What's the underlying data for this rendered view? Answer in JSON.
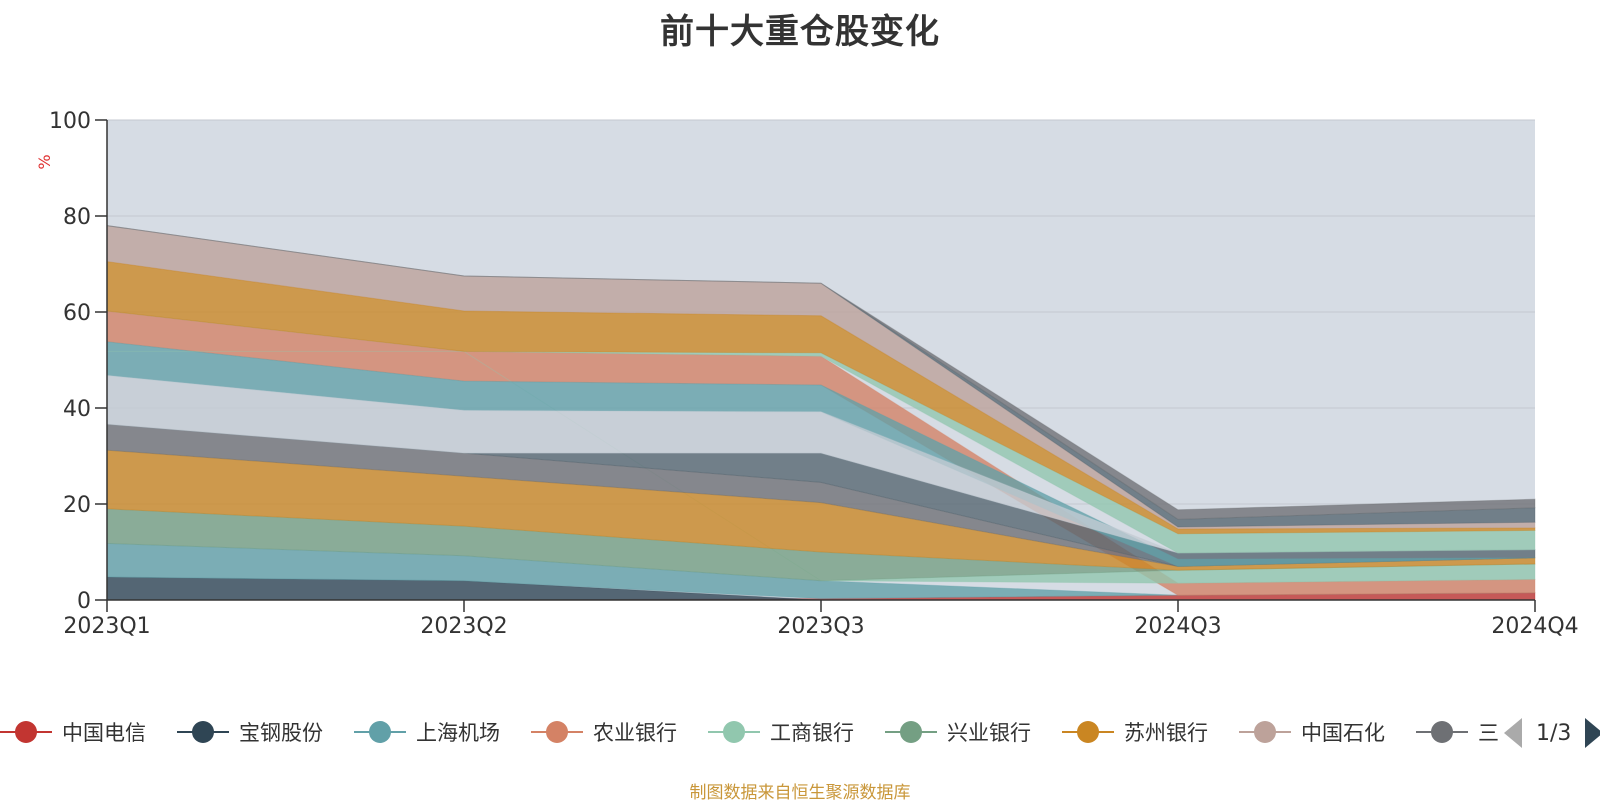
{
  "chart_data": {
    "type": "area",
    "title": "前十大重仓股变化",
    "ylabel": "%",
    "ylim": [
      0,
      100
    ],
    "yticks": [
      0,
      20,
      40,
      60,
      80,
      100
    ],
    "categories": [
      "2023Q1",
      "2023Q2",
      "2023Q3",
      "2024Q3",
      "2024Q4"
    ],
    "layers": [
      {
        "name": "中国电信",
        "color": "#c23531",
        "lower": [
          0,
          0,
          0,
          0,
          0
        ],
        "upper": [
          0,
          0,
          0.3,
          1.0,
          1.5
        ]
      },
      {
        "name": "宝钢股份",
        "color": "#2f4554",
        "lower": [
          0,
          0,
          0,
          0,
          0
        ],
        "upper": [
          4.8,
          4.0,
          0,
          0,
          0
        ]
      },
      {
        "name": "上海机场",
        "color": "#61a0a8",
        "lower": [
          4.8,
          4.0,
          0.3,
          1.0,
          1.5
        ],
        "upper": [
          11.8,
          9.2,
          4.0,
          1.0,
          1.5
        ]
      },
      {
        "name": "农业银行",
        "color": "#d48265",
        "lower": [
          53.8,
          45.6,
          44.8,
          1.0,
          1.5
        ],
        "upper": [
          60.2,
          51.8,
          50.8,
          3.5,
          4.3
        ]
      },
      {
        "name": "工商银行",
        "color": "#91c7ae",
        "lower": [
          60.2,
          51.8,
          4.0,
          3.5,
          4.3
        ],
        "upper": [
          60.2,
          51.8,
          4.0,
          6.2,
          7.5
        ]
      },
      {
        "name": "兴业银行",
        "color": "#749f83",
        "lower": [
          11.8,
          9.2,
          4.0,
          6.2,
          7.5
        ],
        "upper": [
          19.0,
          15.4,
          10.0,
          6.2,
          7.5
        ]
      },
      {
        "name": "苏州银行",
        "color": "#ca8622",
        "lower": [
          19.0,
          15.4,
          10.0,
          6.2,
          7.5
        ],
        "upper": [
          31.2,
          25.8,
          20.3,
          7.0,
          8.8
        ]
      },
      {
        "name": "中国石化",
        "color": "#bda29a",
        "lower": [
          70.5,
          60.2,
          59.2,
          14.8,
          15.0
        ],
        "upper": [
          78.0,
          67.5,
          66.0,
          15.2,
          16.2
        ]
      },
      {
        "name": "",
        "color": "#6e7074",
        "lower": [
          31.2,
          25.8,
          20.3,
          7.0,
          8.8
        ],
        "upper": [
          36.6,
          30.6,
          24.5,
          7.0,
          8.8
        ]
      },
      {
        "name": "",
        "color": "#546570",
        "lower": [
          36.6,
          30.6,
          24.5,
          7.0,
          8.8
        ],
        "upper": [
          36.6,
          30.6,
          30.6,
          9.8,
          10.5
        ]
      },
      {
        "name": "",
        "color": "#61a0a8",
        "lower": [
          46.8,
          39.5,
          39.2,
          7.0,
          8.8
        ],
        "upper": [
          53.8,
          45.6,
          44.8,
          8.5,
          8.8
        ]
      },
      {
        "name": "",
        "color": "#c4ccd3",
        "lower": [
          36.6,
          30.6,
          30.6,
          9.8,
          10.5
        ],
        "upper": [
          46.8,
          39.5,
          39.2,
          9.8,
          10.5
        ]
      },
      {
        "name": "",
        "color": "#91c7ae",
        "lower": [
          51.8,
          51.8,
          50.8,
          9.8,
          10.5
        ],
        "upper": [
          51.8,
          51.8,
          51.5,
          13.8,
          14.5
        ]
      },
      {
        "name": "",
        "color": "#ca8622",
        "lower": [
          60.2,
          51.8,
          51.5,
          13.8,
          14.5
        ],
        "upper": [
          70.5,
          60.2,
          59.2,
          14.8,
          15.0
        ]
      },
      {
        "name": "",
        "color": "#546570",
        "lower": [
          78.0,
          67.5,
          66.0,
          15.2,
          16.2
        ],
        "upper": [
          78.0,
          67.5,
          66.0,
          16.8,
          19.2
        ]
      },
      {
        "name": "",
        "color": "#6e7074",
        "lower": [
          78.0,
          67.5,
          66.0,
          16.8,
          19.2
        ],
        "upper": [
          78.0,
          67.5,
          66.0,
          18.8,
          21.0
        ]
      }
    ]
  },
  "legend": {
    "items": [
      {
        "label": "中国电信",
        "color": "#c23531"
      },
      {
        "label": "宝钢股份",
        "color": "#2f4554"
      },
      {
        "label": "上海机场",
        "color": "#61a0a8"
      },
      {
        "label": "农业银行",
        "color": "#d48265"
      },
      {
        "label": "工商银行",
        "color": "#91c7ae"
      },
      {
        "label": "兴业银行",
        "color": "#749f83"
      },
      {
        "label": "苏州银行",
        "color": "#ca8622"
      },
      {
        "label": "中国石化",
        "color": "#bda29a"
      },
      {
        "label": "三",
        "color": "#6e7074"
      }
    ],
    "page_indicator": "1/3"
  },
  "source_note": "制图数据来自恒生聚源数据库",
  "colors": {
    "plot_background": "#d6dce4",
    "gridline": "#c4c9d0",
    "axis": "#333333"
  }
}
